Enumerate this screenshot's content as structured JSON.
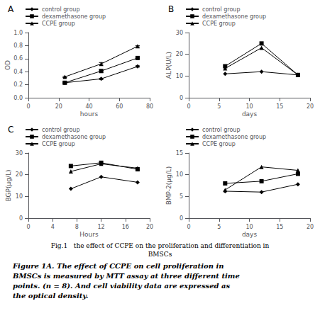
{
  "chart_data": [
    {
      "type": "line",
      "title": "A",
      "x": [
        24,
        48,
        72
      ],
      "xlabel": "hours",
      "ylabel": "OD",
      "xlim": [
        0,
        80
      ],
      "ylim": [
        0.0,
        1.0
      ],
      "xticks": [
        0,
        20,
        40,
        60,
        80
      ],
      "yticks": [
        {
          "value": 0.0,
          "label": "0.0"
        },
        0.2,
        0.4,
        0.6,
        0.8,
        {
          "value": 1.0,
          "label": "1.0"
        }
      ],
      "legend": "upper left",
      "grid": false,
      "series": [
        {
          "name": "control group",
          "color": "#000000",
          "marker": "diamond",
          "values": [
            0.23,
            0.29,
            0.48
          ],
          "errors": [
            0.01,
            0.01,
            0.01
          ]
        },
        {
          "name": "dexamethasone group",
          "color": "#000000",
          "marker": "square",
          "values": [
            0.23,
            0.41,
            0.61
          ],
          "errors": [
            0.01,
            0.02,
            0.01
          ]
        },
        {
          "name": "CCPE group",
          "color": "#000000",
          "marker": "triangle",
          "values": [
            0.32,
            0.52,
            0.79
          ],
          "errors": [
            0.01,
            0.02,
            0.01
          ]
        }
      ]
    },
    {
      "type": "line",
      "title": "B",
      "x": [
        6,
        12,
        18
      ],
      "xlabel": "days",
      "ylabel": "ALP(U/L)",
      "xlim": [
        0,
        20
      ],
      "ylim": [
        0,
        30
      ],
      "xticks": [
        0,
        5,
        10,
        15,
        20
      ],
      "yticks": [
        0,
        10,
        20,
        30
      ],
      "legend": "upper left",
      "grid": false,
      "series": [
        {
          "name": "control group",
          "color": "#000000",
          "marker": "diamond",
          "values": [
            11.0,
            12.0,
            10.5
          ]
        },
        {
          "name": "dexamethasone group",
          "color": "#000000",
          "marker": "square",
          "values": [
            14.5,
            25.0,
            10.5
          ]
        },
        {
          "name": "CCPE group",
          "color": "#000000",
          "marker": "triangle",
          "values": [
            13.5,
            23.0,
            10.5
          ]
        }
      ]
    },
    {
      "type": "line",
      "title": "C",
      "x": [
        7,
        12,
        18
      ],
      "xlabel": "Hours",
      "ylabel": "BGP(μg/L)",
      "xlim": [
        0,
        20
      ],
      "ylim": [
        0,
        30
      ],
      "xticks": [
        0,
        4,
        8,
        12,
        16,
        20
      ],
      "yticks": [
        0,
        10,
        20,
        30
      ],
      "legend": "upper left",
      "grid": false,
      "series": [
        {
          "name": "control group",
          "color": "#000000",
          "marker": "diamond",
          "values": [
            13.5,
            19.0,
            16.5
          ]
        },
        {
          "name": "dexamethasone group",
          "color": "#000000",
          "marker": "square",
          "values": [
            24.0,
            25.5,
            22.5
          ]
        },
        {
          "name": "CCPE group",
          "color": "#000000",
          "marker": "triangle",
          "values": [
            21.5,
            25.0,
            23.0
          ]
        }
      ]
    },
    {
      "type": "line",
      "x": [
        6,
        12,
        18
      ],
      "xlabel": "days",
      "ylabel": "BMP-2(μg/L)",
      "xlim": [
        0,
        20
      ],
      "ylim": [
        0,
        15
      ],
      "xticks": [
        0,
        5,
        10,
        15,
        20
      ],
      "yticks": [
        0,
        5,
        10,
        15
      ],
      "legend": "upper left",
      "grid": false,
      "series": [
        {
          "name": "control group",
          "color": "#000000",
          "marker": "diamond",
          "values": [
            6.2,
            6.0,
            7.8
          ]
        },
        {
          "name": "dexamethasone group",
          "color": "#000000",
          "marker": "square",
          "values": [
            8.0,
            8.5,
            10.2
          ]
        },
        {
          "name": "CCPE group",
          "color": "#000000",
          "marker": "triangle",
          "values": [
            6.5,
            11.8,
            11.0
          ]
        }
      ]
    }
  ],
  "annotations": [
    "Fig.1   the effect of CCPE on the proliferation and differentiation in",
    "BMSCs",
    "Figure 1A. The effect of CCPE on cell proliferation in",
    "BMSCs is measured by MTT assay at three different time",
    "points. (n = 8). And cell viability data are expressed as",
    "the optical density."
  ]
}
